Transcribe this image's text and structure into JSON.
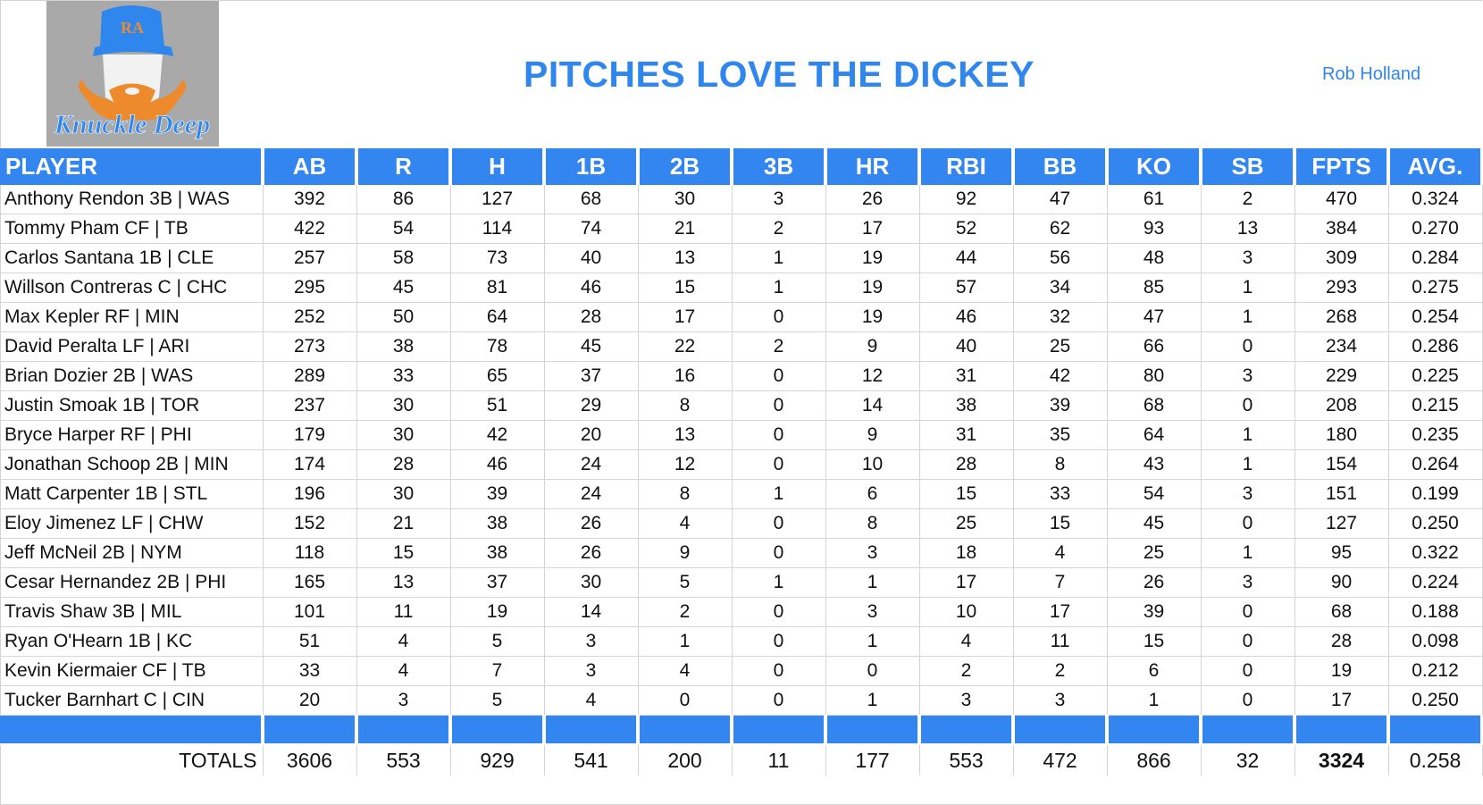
{
  "header": {
    "title": "PITCHES LOVE THE DICKEY",
    "author": "Rob Holland",
    "logo_text": "Knuckle Deep",
    "logo_cap_text": "RA"
  },
  "colors": {
    "accent": "#3385f0",
    "title": "#2f87ee"
  },
  "columns": [
    "PLAYER",
    "AB",
    "R",
    "H",
    "1B",
    "2B",
    "3B",
    "HR",
    "RBI",
    "BB",
    "KO",
    "SB",
    "FPTS",
    "AVG."
  ],
  "rows": [
    [
      "Anthony Rendon 3B | WAS",
      "392",
      "86",
      "127",
      "68",
      "30",
      "3",
      "26",
      "92",
      "47",
      "61",
      "2",
      "470",
      "0.324"
    ],
    [
      "Tommy Pham CF | TB",
      "422",
      "54",
      "114",
      "74",
      "21",
      "2",
      "17",
      "52",
      "62",
      "93",
      "13",
      "384",
      "0.270"
    ],
    [
      "Carlos Santana 1B | CLE",
      "257",
      "58",
      "73",
      "40",
      "13",
      "1",
      "19",
      "44",
      "56",
      "48",
      "3",
      "309",
      "0.284"
    ],
    [
      "Willson Contreras C | CHC",
      "295",
      "45",
      "81",
      "46",
      "15",
      "1",
      "19",
      "57",
      "34",
      "85",
      "1",
      "293",
      "0.275"
    ],
    [
      "Max Kepler RF | MIN",
      "252",
      "50",
      "64",
      "28",
      "17",
      "0",
      "19",
      "46",
      "32",
      "47",
      "1",
      "268",
      "0.254"
    ],
    [
      "David Peralta LF | ARI",
      "273",
      "38",
      "78",
      "45",
      "22",
      "2",
      "9",
      "40",
      "25",
      "66",
      "0",
      "234",
      "0.286"
    ],
    [
      "Brian Dozier 2B | WAS",
      "289",
      "33",
      "65",
      "37",
      "16",
      "0",
      "12",
      "31",
      "42",
      "80",
      "3",
      "229",
      "0.225"
    ],
    [
      "Justin Smoak 1B | TOR",
      "237",
      "30",
      "51",
      "29",
      "8",
      "0",
      "14",
      "38",
      "39",
      "68",
      "0",
      "208",
      "0.215"
    ],
    [
      "Bryce Harper RF | PHI",
      "179",
      "30",
      "42",
      "20",
      "13",
      "0",
      "9",
      "31",
      "35",
      "64",
      "1",
      "180",
      "0.235"
    ],
    [
      "Jonathan Schoop 2B | MIN",
      "174",
      "28",
      "46",
      "24",
      "12",
      "0",
      "10",
      "28",
      "8",
      "43",
      "1",
      "154",
      "0.264"
    ],
    [
      "Matt Carpenter 1B | STL",
      "196",
      "30",
      "39",
      "24",
      "8",
      "1",
      "6",
      "15",
      "33",
      "54",
      "3",
      "151",
      "0.199"
    ],
    [
      "Eloy Jimenez LF | CHW",
      "152",
      "21",
      "38",
      "26",
      "4",
      "0",
      "8",
      "25",
      "15",
      "45",
      "0",
      "127",
      "0.250"
    ],
    [
      "Jeff McNeil 2B | NYM",
      "118",
      "15",
      "38",
      "26",
      "9",
      "0",
      "3",
      "18",
      "4",
      "25",
      "1",
      "95",
      "0.322"
    ],
    [
      "Cesar Hernandez 2B | PHI",
      "165",
      "13",
      "37",
      "30",
      "5",
      "1",
      "1",
      "17",
      "7",
      "26",
      "3",
      "90",
      "0.224"
    ],
    [
      "Travis Shaw 3B | MIL",
      "101",
      "11",
      "19",
      "14",
      "2",
      "0",
      "3",
      "10",
      "17",
      "39",
      "0",
      "68",
      "0.188"
    ],
    [
      "Ryan O'Hearn 1B | KC",
      "51",
      "4",
      "5",
      "3",
      "1",
      "0",
      "1",
      "4",
      "11",
      "15",
      "0",
      "28",
      "0.098"
    ],
    [
      "Kevin Kiermaier CF | TB",
      "33",
      "4",
      "7",
      "3",
      "4",
      "0",
      "0",
      "2",
      "2",
      "6",
      "0",
      "19",
      "0.212"
    ],
    [
      "Tucker Barnhart C | CIN",
      "20",
      "3",
      "5",
      "4",
      "0",
      "0",
      "1",
      "3",
      "3",
      "1",
      "0",
      "17",
      "0.250"
    ]
  ],
  "totals": [
    "TOTALS",
    "3606",
    "553",
    "929",
    "541",
    "200",
    "11",
    "177",
    "553",
    "472",
    "866",
    "32",
    "3324",
    "0.258"
  ]
}
